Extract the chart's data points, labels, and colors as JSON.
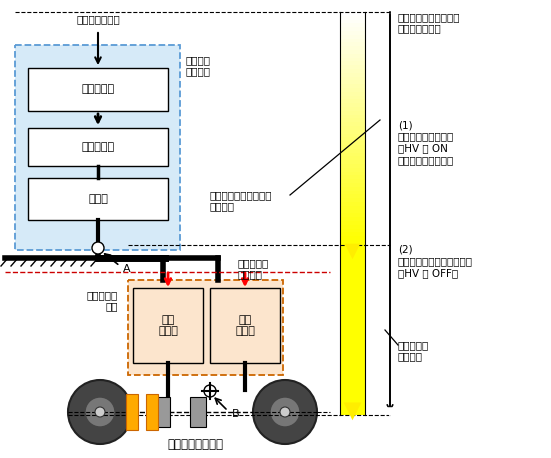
{
  "fig_width": 5.51,
  "fig_height": 4.58,
  "dpi": 100,
  "bg_color": "#ffffff",
  "title_text": "電空変換弁指令",
  "brake_ctrl_label": "ブレーキ\n制御装置",
  "valve1_label": "電空変換弁",
  "valve2_label": "複式逆止弁",
  "valve3_label": "中継弁",
  "skid_device_label": "滑走制御弁\n装置",
  "skid_valve_label": "滑走\n制御弁",
  "skid_cmd_label": "滑走制御弁\n指令信号",
  "response_old_label": "従来のブレーキ手順の\n応答時間",
  "trad_brake_label": "従来のブレーキ手順の\nブレーキ開始点",
  "anno1_label": "(1)\n事前に供給しておく\n（HV を ON\n＋電空変換弁指令）",
  "anno2_label": "(2)\n提案手法のブレーキ開始点\n（HV を OFF）",
  "proposal_response_label": "提案手法の\n応答時間",
  "brake_cyl_label": "ブレーキシリンダ",
  "point_A": "A",
  "point_B": "B"
}
